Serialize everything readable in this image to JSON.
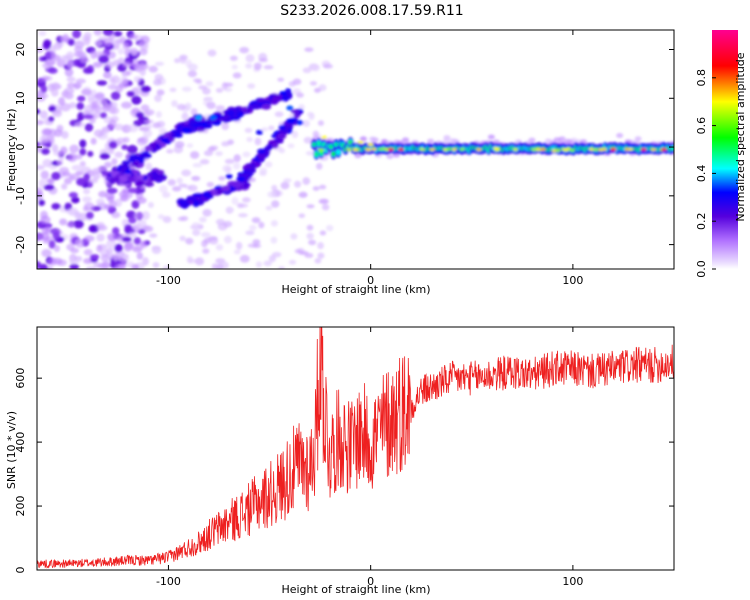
{
  "title": "S233.2026.008.17.59.R11",
  "chart_data": [
    {
      "type": "heatmap",
      "name": "spectrogram",
      "xlabel": "Height of straight line (km)",
      "ylabel": "Frequency (Hz)",
      "xlim": [
        -165,
        150
      ],
      "ylim": [
        -25,
        24
      ],
      "xticks": [
        -100,
        0,
        100
      ],
      "yticks": [
        -20,
        -10,
        0,
        10,
        20
      ],
      "colorbar": {
        "label": "Normalized spectral amplitude",
        "range": [
          0,
          1
        ],
        "ticks": [
          0.0,
          0.2,
          0.4,
          0.6,
          0.8
        ],
        "tick_labels": [
          "0.0",
          "0.2",
          "0.4",
          "0.6",
          "0.8"
        ]
      }
    },
    {
      "type": "line",
      "name": "snr",
      "xlabel": "Height of straight line (km)",
      "ylabel": "SNR (10 * v/v)",
      "xlim": [
        -165,
        150
      ],
      "ylim": [
        0,
        760
      ],
      "xticks": [
        -100,
        0,
        100
      ],
      "yticks": [
        0,
        200,
        400,
        600
      ],
      "series": [
        {
          "name": "SNR",
          "color": "#ee2020",
          "x": [
            -165,
            -150,
            -140,
            -130,
            -120,
            -110,
            -100,
            -95,
            -90,
            -85,
            -80,
            -75,
            -70,
            -65,
            -60,
            -55,
            -50,
            -45,
            -40,
            -35,
            -30,
            -27,
            -25,
            -22,
            -20,
            -18,
            -15,
            -10,
            -5,
            0,
            5,
            10,
            15,
            20,
            25,
            30,
            40,
            50,
            60,
            70,
            80,
            90,
            100,
            110,
            120,
            130,
            140,
            150
          ],
          "y": [
            20,
            20,
            22,
            25,
            30,
            30,
            40,
            55,
            70,
            85,
            110,
            130,
            150,
            170,
            190,
            215,
            235,
            260,
            300,
            330,
            320,
            420,
            700,
            450,
            360,
            390,
            420,
            380,
            430,
            400,
            440,
            470,
            500,
            510,
            560,
            570,
            600,
            600,
            610,
            620,
            610,
            630,
            630,
            620,
            630,
            640,
            640,
            650
          ]
        }
      ]
    }
  ]
}
